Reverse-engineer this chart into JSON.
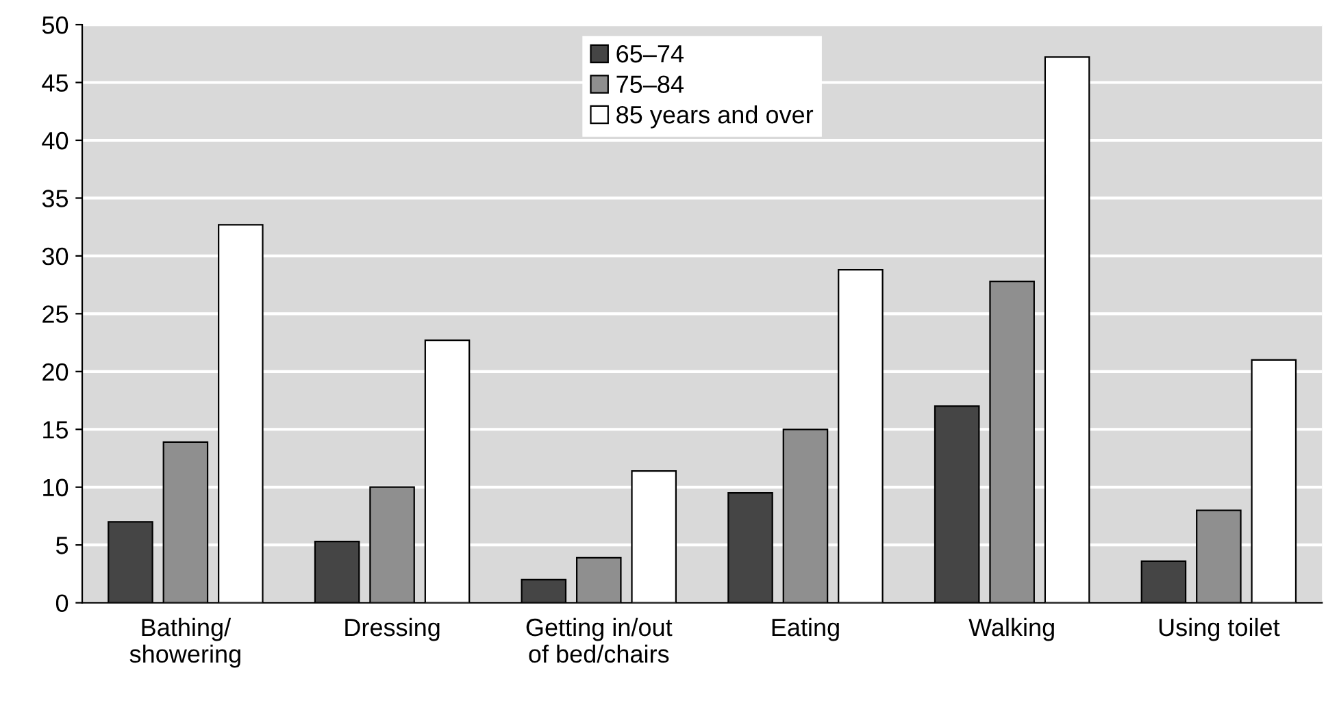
{
  "chart_data": {
    "type": "bar",
    "categories": [
      "Bathing/\nshowering",
      "Dressing",
      "Getting in/out\nof bed/chairs",
      "Eating",
      "Walking",
      "Using toilet"
    ],
    "series": [
      {
        "name": "65–74",
        "color": "#454545",
        "values": [
          7,
          5.3,
          2,
          9.5,
          17,
          3.6
        ]
      },
      {
        "name": "75–84",
        "color": "#8f8f8f",
        "values": [
          13.9,
          10,
          3.9,
          15,
          27.8,
          8
        ]
      },
      {
        "name": "85 years and over",
        "color": "#ffffff",
        "values": [
          32.7,
          22.7,
          11.4,
          28.8,
          47.2,
          21
        ]
      }
    ],
    "ylim": [
      0,
      50
    ],
    "yticks": [
      0,
      5,
      10,
      15,
      20,
      25,
      30,
      35,
      40,
      45,
      50
    ],
    "grid": "y",
    "legend": "top"
  }
}
